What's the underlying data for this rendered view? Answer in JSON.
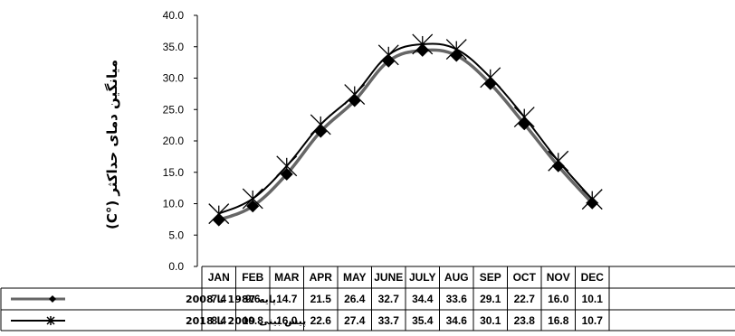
{
  "chart_data": {
    "type": "line",
    "ylabel": "میانگین دمای حداکثر (°C)",
    "ylim": [
      0,
      40
    ],
    "yticks": [
      "0.0",
      "5.0",
      "10.0",
      "15.0",
      "20.0",
      "25.0",
      "30.0",
      "35.0",
      "40.0"
    ],
    "categories": [
      "JAN",
      "FEB",
      "MAR",
      "APR",
      "MAY",
      "JUNE",
      "JULY",
      "AUG",
      "SEP",
      "OCT",
      "NOV",
      "DEC"
    ],
    "grid": false,
    "legend": "data-table-left",
    "series": [
      {
        "name": "پایه 1987 تا 2008",
        "color": "#666666",
        "marker": "diamond",
        "values": [
          7.4,
          9.6,
          14.7,
          21.5,
          26.4,
          32.7,
          34.4,
          33.6,
          29.1,
          22.7,
          16.0,
          10.1
        ],
        "labels": [
          "7.4",
          "9.6",
          "14.7",
          "21.5",
          "26.4",
          "32.7",
          "34.4",
          "33.6",
          "29.1",
          "22.7",
          "16.0",
          "10.1"
        ]
      },
      {
        "name": "پیش بینی 2009 تا 2018",
        "color": "#000000",
        "marker": "star",
        "values": [
          8.4,
          10.8,
          16.0,
          22.6,
          27.4,
          33.7,
          35.4,
          34.6,
          30.1,
          23.8,
          16.8,
          10.7
        ],
        "labels": [
          "8.4",
          "10.8",
          "16.0",
          "22.6",
          "27.4",
          "33.7",
          "35.4",
          "34.6",
          "30.1",
          "23.8",
          "16.8",
          "10.7"
        ]
      }
    ]
  }
}
